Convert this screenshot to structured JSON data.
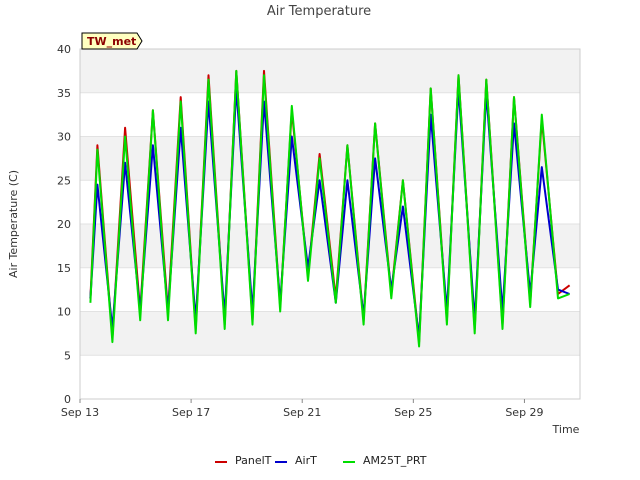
{
  "chart_data": {
    "type": "line",
    "title": "Air Temperature",
    "xlabel": "Time",
    "ylabel": "Air Temperature (C)",
    "tag": "TW_met",
    "ylim": [
      0,
      40
    ],
    "yticks": [
      0,
      5,
      10,
      15,
      20,
      25,
      30,
      35,
      40
    ],
    "xlim": [
      "2023-09-13",
      "2023-10-01"
    ],
    "xticks": [
      {
        "label": "Sep 13",
        "day": 0
      },
      {
        "label": "Sep 17",
        "day": 4
      },
      {
        "label": "Sep 21",
        "day": 8
      },
      {
        "label": "Sep 25",
        "day": 12
      },
      {
        "label": "Sep 29",
        "day": 16
      }
    ],
    "grid": "horizontal bands",
    "legend_position": "bottom",
    "x": [
      "2023-09-13 09:00",
      "2023-09-13 15:00",
      "2023-09-14 04:00",
      "2023-09-14 15:00",
      "2023-09-15 04:00",
      "2023-09-15 15:00",
      "2023-09-16 04:00",
      "2023-09-16 15:00",
      "2023-09-17 04:00",
      "2023-09-17 15:00",
      "2023-09-18 05:00",
      "2023-09-18 15:00",
      "2023-09-19 05:00",
      "2023-09-19 15:00",
      "2023-09-20 05:00",
      "2023-09-20 15:00",
      "2023-09-21 05:00",
      "2023-09-21 15:00",
      "2023-09-22 05:00",
      "2023-09-22 15:00",
      "2023-09-23 05:00",
      "2023-09-23 15:00",
      "2023-09-24 05:00",
      "2023-09-24 15:00",
      "2023-09-25 05:00",
      "2023-09-25 15:00",
      "2023-09-26 05:00",
      "2023-09-26 15:00",
      "2023-09-27 05:00",
      "2023-09-27 15:00",
      "2023-09-28 05:00",
      "2023-09-28 15:00",
      "2023-09-29 05:00",
      "2023-09-29 15:00",
      "2023-09-30 05:00",
      "2023-09-30 15:00"
    ],
    "series": [
      {
        "name": "PanelT",
        "color": "#cc0000",
        "values": [
          11.5,
          29,
          7,
          31,
          10,
          33,
          10,
          34.5,
          8,
          37,
          8.5,
          37.5,
          9,
          37.5,
          10.5,
          33,
          14,
          28,
          11.5,
          29,
          9,
          31.5,
          12,
          25,
          6.5,
          35.5,
          9,
          37,
          8,
          36.5,
          8.5,
          34.5,
          11,
          32,
          12,
          13
        ]
      },
      {
        "name": "AirT",
        "color": "#0000cc",
        "values": [
          11.5,
          24.5,
          8,
          27,
          10,
          29,
          10,
          31,
          9,
          34,
          9.5,
          35.5,
          10,
          34,
          11,
          30,
          15,
          25,
          11,
          25,
          9.5,
          27.5,
          12.5,
          22,
          7,
          32.5,
          10,
          35.5,
          9,
          35,
          10,
          31.5,
          12,
          26.5,
          12.5,
          12
        ]
      },
      {
        "name": "AM25T_PRT",
        "color": "#00dd00",
        "values": [
          11,
          28.5,
          6.5,
          30,
          9,
          33,
          9,
          34,
          7.5,
          36.5,
          8,
          37.5,
          8.5,
          37,
          10,
          33.5,
          13.5,
          27.5,
          11,
          29,
          8.5,
          31.5,
          11.5,
          25,
          6,
          35.5,
          8.5,
          37,
          7.5,
          36.5,
          8,
          34.5,
          10.5,
          32.5,
          11.5,
          12
        ]
      }
    ]
  }
}
